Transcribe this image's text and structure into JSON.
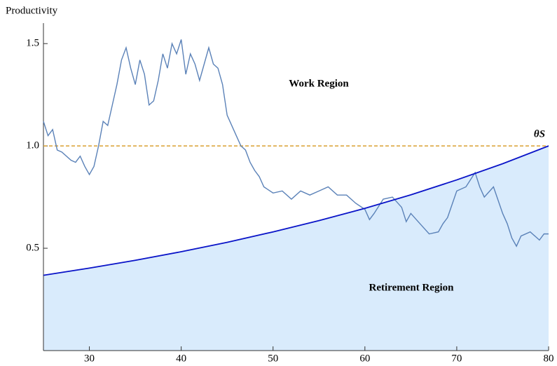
{
  "chart_data": {
    "type": "line",
    "y_label": "Productivity",
    "xlim": [
      25,
      80
    ],
    "xticks": [
      30,
      40,
      50,
      60,
      70,
      80
    ],
    "ylim": [
      0,
      1.6
    ],
    "yticks": [
      0.5,
      {
        "value": 1.0,
        "label": "1.0"
      },
      1.5
    ],
    "hline": 1.0,
    "hline_color": "#d9a030",
    "annotations": [
      "Work Region",
      "Retirement Region",
      "θS"
    ],
    "series": [
      {
        "color": "#5b82b8",
        "x": [
          25,
          25.5,
          26,
          26.5,
          27,
          28,
          28.5,
          29,
          29.5,
          30,
          30.5,
          31,
          31.5,
          32,
          32.5,
          33,
          33.5,
          34,
          34.5,
          35,
          35.5,
          36,
          36.5,
          37,
          37.5,
          38,
          38.5,
          39,
          39.5,
          40,
          40.5,
          41,
          41.5,
          42,
          42.5,
          43,
          43.5,
          44,
          44.5,
          45,
          45.5,
          46,
          46.5,
          47,
          47.5,
          48,
          48.5,
          49,
          50,
          51,
          52,
          53,
          54,
          55,
          56,
          57,
          58,
          59,
          60,
          60.5,
          61,
          62,
          63,
          64,
          64.5,
          65,
          66,
          67,
          68,
          68.5,
          69,
          70,
          71,
          72,
          72.5,
          73,
          74,
          75,
          75.5,
          76,
          76.5,
          77,
          78,
          79,
          79.5,
          80
        ],
        "values": [
          1.12,
          1.05,
          1.08,
          0.98,
          0.97,
          0.93,
          0.92,
          0.95,
          0.9,
          0.86,
          0.9,
          1.0,
          1.12,
          1.1,
          1.2,
          1.3,
          1.42,
          1.48,
          1.38,
          1.3,
          1.42,
          1.35,
          1.2,
          1.22,
          1.32,
          1.45,
          1.38,
          1.5,
          1.45,
          1.52,
          1.35,
          1.45,
          1.4,
          1.32,
          1.4,
          1.48,
          1.4,
          1.38,
          1.3,
          1.15,
          1.1,
          1.05,
          1.0,
          0.98,
          0.92,
          0.88,
          0.85,
          0.8,
          0.77,
          0.78,
          0.74,
          0.78,
          0.76,
          0.78,
          0.8,
          0.76,
          0.76,
          0.72,
          0.69,
          0.64,
          0.67,
          0.74,
          0.75,
          0.7,
          0.63,
          0.67,
          0.62,
          0.57,
          0.58,
          0.62,
          0.65,
          0.78,
          0.8,
          0.87,
          0.8,
          0.75,
          0.8,
          0.67,
          0.62,
          0.55,
          0.51,
          0.56,
          0.58,
          0.54,
          0.57,
          0.57
        ]
      },
      {
        "color": "#0a14c8",
        "fill": "#d9ebfc",
        "x": [
          25,
          30,
          35,
          40,
          45,
          50,
          55,
          60,
          65,
          70,
          75,
          80
        ],
        "values": [
          0.368,
          0.403,
          0.441,
          0.483,
          0.529,
          0.58,
          0.635,
          0.695,
          0.761,
          0.834,
          0.913,
          1.0
        ]
      }
    ]
  }
}
